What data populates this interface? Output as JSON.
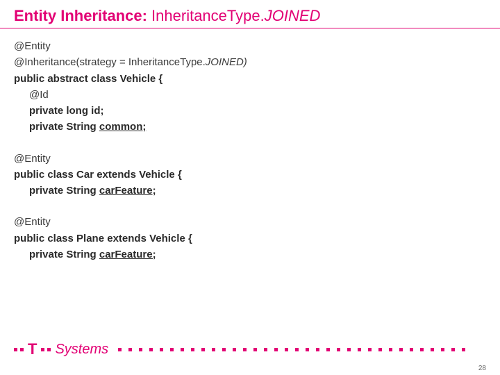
{
  "accent_color": "#e20074",
  "text_color": "#3a3a3a",
  "title": {
    "bold_part": "Entity Inheritance: ",
    "normal_part": "InheritanceType.",
    "italic_part": "JOINED"
  },
  "code": {
    "l01": "@Entity",
    "l02a": "@Inheritance(strategy = InheritanceType.",
    "l02b": "JOINED)",
    "l03": "public abstract class Vehicle {",
    "l04": "@Id",
    "l05": "private long id;",
    "l06a": "private String ",
    "l06b": "common;",
    "l08": "@Entity",
    "l09": "public class Car extends Vehicle {",
    "l10a": "private String ",
    "l10b": "carFeature;",
    "l12": "@Entity",
    "l13": "public class Plane extends Vehicle {",
    "l14a": "private String ",
    "l14b": "carFeature;"
  },
  "logo": {
    "t_glyph": "T",
    "brand": "Systems"
  },
  "page_number": "28",
  "footer_dot_count": 34
}
